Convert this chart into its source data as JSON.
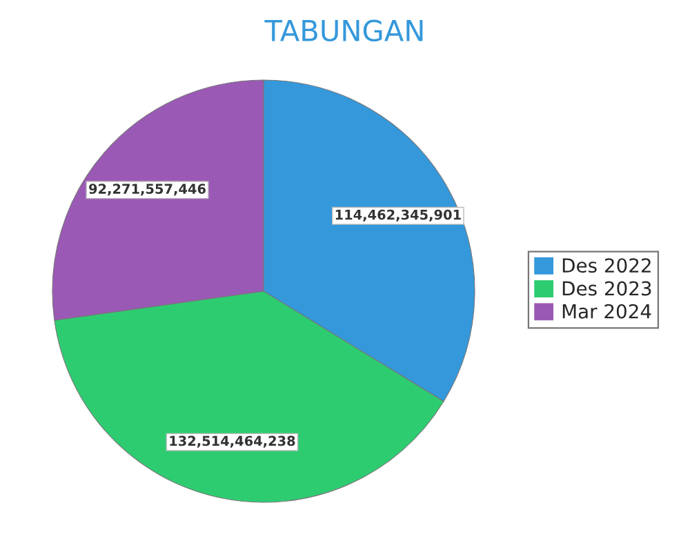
{
  "chart_data": {
    "type": "pie",
    "title": "TABUNGAN",
    "categories": [
      "Des 2022",
      "Des 2023",
      "Mar 2024"
    ],
    "values": [
      114462345901,
      132514464238,
      92271557446
    ],
    "colors": [
      "#3498db",
      "#2ecc71",
      "#9b59b6"
    ],
    "value_labels": [
      "114,462,345,901",
      "132,514,464,238",
      "92,271,557,446"
    ],
    "legend": "right"
  }
}
